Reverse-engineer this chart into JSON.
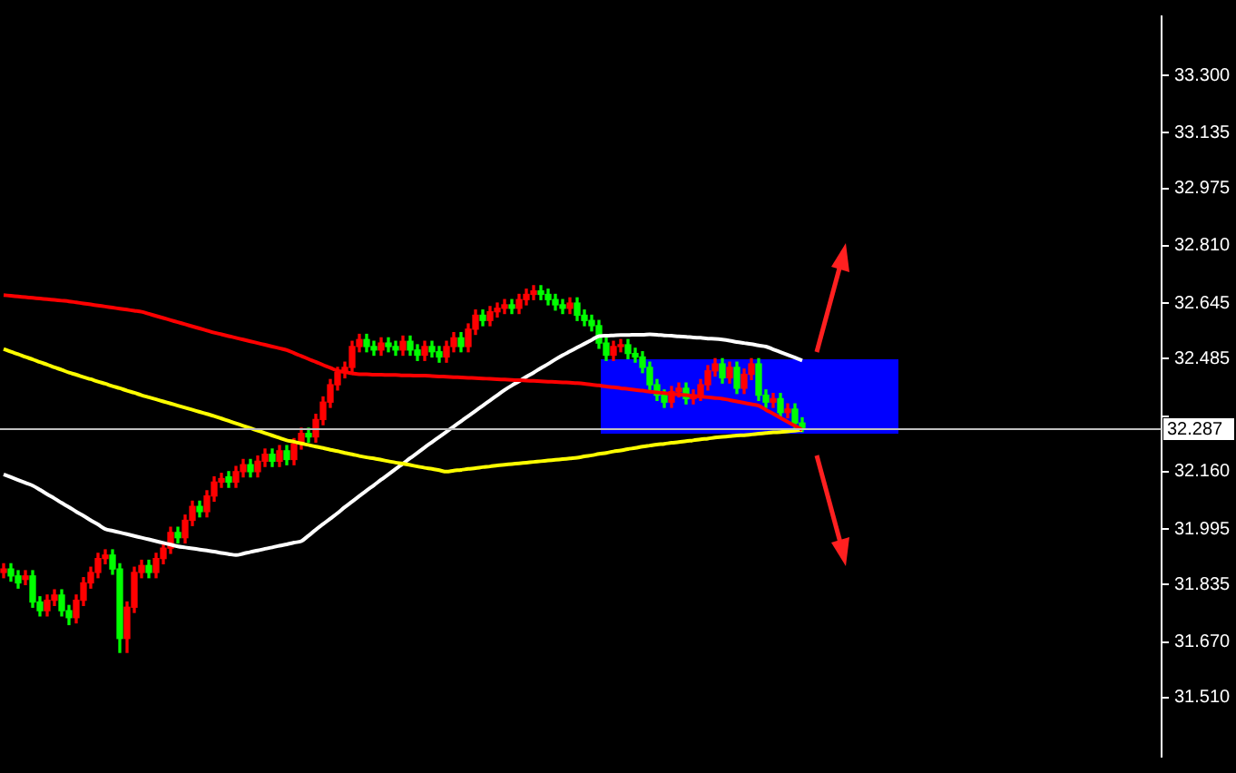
{
  "chart_data": {
    "type": "candlestick",
    "ylim": [
      31.34,
      33.47
    ],
    "tick_labels": "y",
    "marker": "none",
    "yticks": [
      {
        "value": 31.51,
        "label": "31.510"
      },
      {
        "value": 31.67,
        "label": "31.670"
      },
      {
        "value": 31.835,
        "label": "31.835"
      },
      {
        "value": 31.995,
        "label": "31.995"
      },
      {
        "value": 32.16,
        "label": "32.160"
      },
      {
        "value": 32.32,
        "label": null
      },
      {
        "value": 32.485,
        "label": "32.485"
      },
      {
        "value": 32.645,
        "label": "32.645"
      },
      {
        "value": 32.81,
        "label": "32.810"
      },
      {
        "value": 32.975,
        "label": "32.975"
      },
      {
        "value": 33.135,
        "label": "33.135"
      },
      {
        "value": 33.3,
        "label": "33.300"
      }
    ],
    "categories": [
      null,
      null,
      null,
      null,
      null,
      null,
      null,
      null,
      null,
      null,
      null,
      null,
      null,
      null,
      null,
      null,
      null,
      null,
      null,
      null,
      null,
      null,
      null,
      null,
      null,
      null,
      null,
      null,
      null,
      null,
      null,
      null,
      null,
      null,
      null,
      null,
      null,
      null,
      null,
      null,
      null,
      null,
      null,
      null,
      null,
      null,
      null,
      null,
      null,
      null,
      null,
      null,
      null,
      null,
      null,
      null,
      null,
      null,
      null,
      null,
      null,
      null,
      null,
      null,
      null,
      null,
      null,
      null,
      null,
      null,
      null,
      null,
      null,
      null,
      null,
      null,
      null,
      null,
      null,
      null,
      null,
      null,
      null,
      null,
      null,
      null,
      null,
      null,
      null,
      null,
      null,
      null,
      null,
      null,
      null,
      null,
      null,
      null,
      null,
      null,
      null,
      null,
      null,
      null,
      null,
      null,
      null,
      null,
      null,
      null,
      null,
      null,
      null,
      null,
      null,
      null,
      null,
      null,
      null,
      null,
      null,
      null,
      null,
      null,
      null,
      null,
      null,
      null,
      null,
      null,
      null,
      null,
      null,
      null,
      null,
      null,
      null,
      null,
      null,
      null,
      null,
      null,
      null,
      null,
      null,
      null,
      null,
      null,
      null,
      null,
      null,
      null,
      null,
      null,
      null,
      null,
      null,
      null,
      null,
      null
    ],
    "ohlc": [
      [
        31.87,
        31.895,
        31.855,
        31.88
      ],
      [
        31.88,
        31.895,
        31.845,
        31.86
      ],
      [
        31.86,
        31.875,
        31.825,
        31.84
      ],
      [
        31.85,
        31.875,
        31.835,
        31.86
      ],
      [
        31.86,
        31.875,
        31.77,
        31.785
      ],
      [
        31.785,
        31.8,
        31.745,
        31.76
      ],
      [
        31.76,
        31.805,
        31.745,
        31.79
      ],
      [
        31.79,
        31.82,
        31.775,
        31.805
      ],
      [
        31.805,
        31.82,
        31.745,
        31.76
      ],
      [
        31.76,
        31.775,
        31.72,
        31.74
      ],
      [
        31.74,
        31.805,
        31.725,
        31.79
      ],
      [
        31.79,
        31.855,
        31.775,
        31.84
      ],
      [
        31.84,
        31.885,
        31.825,
        31.87
      ],
      [
        31.87,
        31.925,
        31.855,
        31.91
      ],
      [
        31.91,
        31.935,
        31.895,
        31.92
      ],
      [
        31.92,
        31.935,
        31.865,
        31.88
      ],
      [
        31.88,
        31.895,
        31.64,
        31.68
      ],
      [
        31.68,
        31.785,
        31.64,
        31.77
      ],
      [
        31.77,
        31.885,
        31.755,
        31.87
      ],
      [
        31.87,
        31.905,
        31.855,
        31.89
      ],
      [
        31.89,
        31.905,
        31.855,
        31.87
      ],
      [
        31.87,
        31.925,
        31.855,
        31.91
      ],
      [
        31.91,
        31.955,
        31.895,
        31.94
      ],
      [
        31.94,
        32.0,
        31.925,
        31.985
      ],
      [
        31.985,
        32.0,
        31.955,
        31.97
      ],
      [
        31.97,
        32.035,
        31.955,
        32.02
      ],
      [
        32.02,
        32.075,
        32.005,
        32.06
      ],
      [
        32.06,
        32.075,
        32.03,
        32.045
      ],
      [
        32.045,
        32.105,
        32.03,
        32.09
      ],
      [
        32.09,
        32.145,
        32.075,
        32.13
      ],
      [
        32.13,
        32.155,
        32.115,
        32.14
      ],
      [
        32.145,
        32.16,
        32.115,
        32.13
      ],
      [
        32.13,
        32.175,
        32.115,
        32.16
      ],
      [
        32.16,
        32.195,
        32.145,
        32.18
      ],
      [
        32.18,
        32.195,
        32.145,
        32.16
      ],
      [
        32.16,
        32.205,
        32.145,
        32.19
      ],
      [
        32.19,
        32.225,
        32.175,
        32.21
      ],
      [
        32.21,
        32.225,
        32.175,
        32.19
      ],
      [
        32.19,
        32.235,
        32.175,
        32.22
      ],
      [
        32.22,
        32.235,
        32.18,
        32.195
      ],
      [
        32.195,
        32.255,
        32.18,
        32.24
      ],
      [
        32.24,
        32.285,
        32.225,
        32.27
      ],
      [
        32.27,
        32.285,
        32.245,
        32.26
      ],
      [
        32.26,
        32.325,
        32.245,
        32.31
      ],
      [
        32.31,
        32.375,
        32.295,
        32.36
      ],
      [
        32.36,
        32.425,
        32.345,
        32.41
      ],
      [
        32.41,
        32.46,
        32.395,
        32.445
      ],
      [
        32.445,
        32.475,
        32.43,
        32.46
      ],
      [
        32.46,
        32.535,
        32.445,
        32.52
      ],
      [
        32.52,
        32.555,
        32.505,
        32.54
      ],
      [
        32.54,
        32.555,
        32.505,
        32.52
      ],
      [
        32.52,
        32.535,
        32.495,
        32.51
      ],
      [
        32.51,
        32.545,
        32.495,
        32.53
      ],
      [
        32.53,
        32.545,
        32.505,
        32.52
      ],
      [
        32.52,
        32.535,
        32.495,
        32.51
      ],
      [
        32.51,
        32.55,
        32.495,
        32.535
      ],
      [
        32.535,
        32.55,
        32.495,
        32.51
      ],
      [
        32.51,
        32.525,
        32.48,
        32.495
      ],
      [
        32.495,
        32.535,
        32.48,
        32.52
      ],
      [
        32.52,
        32.535,
        32.49,
        32.505
      ],
      [
        32.505,
        32.52,
        32.475,
        32.49
      ],
      [
        32.49,
        32.535,
        32.475,
        32.52
      ],
      [
        32.52,
        32.56,
        32.505,
        32.545
      ],
      [
        32.545,
        32.56,
        32.505,
        32.52
      ],
      [
        32.52,
        32.585,
        32.505,
        32.57
      ],
      [
        32.57,
        32.625,
        32.555,
        32.61
      ],
      [
        32.61,
        32.625,
        32.58,
        32.595
      ],
      [
        32.595,
        32.635,
        32.58,
        32.62
      ],
      [
        32.62,
        32.645,
        32.605,
        32.63
      ],
      [
        32.63,
        32.655,
        32.615,
        32.64
      ],
      [
        32.64,
        32.655,
        32.615,
        32.63
      ],
      [
        32.63,
        32.67,
        32.615,
        32.655
      ],
      [
        32.655,
        32.685,
        32.64,
        32.67
      ],
      [
        32.67,
        32.695,
        32.655,
        32.68
      ],
      [
        32.68,
        32.695,
        32.655,
        32.67
      ],
      [
        32.67,
        32.685,
        32.64,
        32.655
      ],
      [
        32.655,
        32.67,
        32.625,
        32.64
      ],
      [
        32.64,
        32.655,
        32.615,
        32.63
      ],
      [
        32.63,
        32.66,
        32.615,
        32.645
      ],
      [
        32.645,
        32.66,
        32.595,
        32.61
      ],
      [
        32.61,
        32.625,
        32.58,
        32.595
      ],
      [
        32.595,
        32.61,
        32.565,
        32.58
      ],
      [
        32.58,
        32.595,
        32.515,
        32.53
      ],
      [
        32.53,
        32.545,
        32.48,
        32.495
      ],
      [
        32.495,
        32.535,
        32.48,
        32.52
      ],
      [
        32.52,
        32.54,
        32.505,
        32.525
      ],
      [
        32.525,
        32.54,
        32.485,
        32.5
      ],
      [
        32.5,
        32.515,
        32.475,
        32.49
      ],
      [
        32.49,
        32.505,
        32.445,
        32.46
      ],
      [
        32.46,
        32.475,
        32.395,
        32.41
      ],
      [
        32.41,
        32.425,
        32.365,
        32.38
      ],
      [
        32.38,
        32.395,
        32.345,
        32.36
      ],
      [
        32.36,
        32.405,
        32.345,
        32.39
      ],
      [
        32.39,
        32.415,
        32.375,
        32.4
      ],
      [
        32.4,
        32.415,
        32.355,
        32.37
      ],
      [
        32.37,
        32.395,
        32.355,
        32.38
      ],
      [
        32.38,
        32.425,
        32.365,
        32.41
      ],
      [
        32.41,
        32.465,
        32.395,
        32.45
      ],
      [
        32.45,
        32.485,
        32.435,
        32.47
      ],
      [
        32.47,
        32.485,
        32.415,
        32.43
      ],
      [
        32.43,
        32.475,
        32.415,
        32.46
      ],
      [
        32.46,
        32.475,
        32.385,
        32.4
      ],
      [
        32.4,
        32.455,
        32.385,
        32.44
      ],
      [
        32.44,
        32.485,
        32.425,
        32.47
      ],
      [
        32.47,
        32.485,
        32.365,
        32.38
      ],
      [
        32.38,
        32.395,
        32.345,
        32.36
      ],
      [
        32.36,
        32.385,
        32.345,
        32.37
      ],
      [
        32.37,
        32.385,
        32.315,
        32.33
      ],
      [
        32.33,
        32.355,
        32.315,
        32.34
      ],
      [
        32.34,
        32.355,
        32.285,
        32.3
      ],
      [
        32.3,
        32.315,
        32.275,
        32.287
      ],
      null,
      null,
      null,
      null,
      null,
      null,
      null,
      null,
      null,
      null,
      null,
      null,
      null,
      null,
      null,
      null,
      null,
      null,
      null,
      null,
      null,
      null,
      null,
      null,
      null,
      null,
      null,
      null,
      null,
      null,
      null,
      null,
      null,
      null,
      null,
      null,
      null,
      null,
      null,
      null,
      null,
      null,
      null,
      null,
      null,
      null,
      null,
      null,
      null
    ],
    "colors": [
      "#ff0000",
      "#00ff00",
      "#00ff00",
      "#ff0000",
      "#00ff00",
      "#00ff00",
      "#ff0000",
      "#ff0000",
      "#00ff00",
      "#00ff00",
      "#ff0000",
      "#ff0000",
      "#ff0000",
      "#ff0000",
      "#ff0000",
      "#00ff00",
      "#00ff00",
      "#ff0000",
      "#ff0000",
      "#ff0000",
      "#00ff00",
      "#ff0000",
      "#ff0000",
      "#ff0000",
      "#00ff00",
      "#ff0000",
      "#ff0000",
      "#00ff00",
      "#ff0000",
      "#ff0000",
      "#ff0000",
      "#00ff00",
      "#ff0000",
      "#ff0000",
      "#00ff00",
      "#ff0000",
      "#ff0000",
      "#00ff00",
      "#ff0000",
      "#00ff00",
      "#ff0000",
      "#ff0000",
      "#00ff00",
      "#ff0000",
      "#ff0000",
      "#ff0000",
      "#ff0000",
      "#ff0000",
      "#ff0000",
      "#ff0000",
      "#00ff00",
      "#00ff00",
      "#ff0000",
      "#00ff00",
      "#00ff00",
      "#ff0000",
      "#00ff00",
      "#00ff00",
      "#ff0000",
      "#00ff00",
      "#00ff00",
      "#ff0000",
      "#ff0000",
      "#00ff00",
      "#ff0000",
      "#ff0000",
      "#00ff00",
      "#ff0000",
      "#ff0000",
      "#ff0000",
      "#00ff00",
      "#ff0000",
      "#ff0000",
      "#ff0000",
      "#00ff00",
      "#00ff00",
      "#00ff00",
      "#00ff00",
      "#ff0000",
      "#00ff00",
      "#00ff00",
      "#00ff00",
      "#00ff00",
      "#00ff00",
      "#ff0000",
      "#ff0000",
      "#00ff00",
      "#00ff00",
      "#00ff00",
      "#00ff00",
      "#00ff00",
      "#00ff00",
      "#ff0000",
      "#ff0000",
      "#00ff00",
      "#ff0000",
      "#ff0000",
      "#ff0000",
      "#ff0000",
      "#00ff00",
      "#ff0000",
      "#00ff00",
      "#ff0000",
      "#ff0000",
      "#00ff00",
      "#00ff00",
      "#ff0000",
      "#00ff00",
      "#ff0000",
      "#00ff00",
      "#00ff00",
      null,
      null,
      null,
      null,
      null,
      null,
      null,
      null,
      null,
      null,
      null,
      null,
      null,
      null,
      null,
      null,
      null,
      null,
      null,
      null,
      null,
      null,
      null,
      null,
      null,
      null,
      null,
      null,
      null,
      null,
      null,
      null,
      null,
      null,
      null,
      null,
      null,
      null,
      null,
      null,
      null,
      null,
      null,
      null,
      null,
      null,
      null,
      null,
      null
    ],
    "series": [
      {
        "type": "line",
        "color": "#ff0000",
        "values": [
          32.668,
          32.666,
          32.664,
          32.662,
          32.66,
          32.658,
          32.656,
          32.654,
          32.652,
          32.65,
          32.647,
          32.644,
          32.641,
          32.638,
          32.635,
          32.632,
          32.629,
          32.626,
          32.623,
          32.62,
          32.614,
          32.608,
          32.602,
          32.596,
          32.59,
          32.584,
          32.578,
          32.572,
          32.566,
          32.56,
          32.555,
          32.55,
          32.545,
          32.54,
          32.535,
          32.53,
          32.525,
          32.52,
          32.515,
          32.51,
          32.501,
          32.493,
          32.484,
          32.476,
          32.467,
          32.459,
          32.45,
          32.447,
          32.443,
          32.44,
          32.44,
          32.439,
          32.439,
          32.438,
          32.438,
          32.437,
          32.437,
          32.436,
          32.436,
          32.435,
          32.434,
          32.433,
          32.432,
          32.431,
          32.43,
          32.429,
          32.428,
          32.427,
          32.426,
          32.425,
          32.424,
          32.423,
          32.422,
          32.421,
          32.42,
          32.419,
          32.418,
          32.417,
          32.416,
          32.415,
          32.413,
          32.41,
          32.408,
          32.405,
          32.403,
          32.4,
          32.398,
          32.395,
          32.393,
          32.39,
          32.388,
          32.386,
          32.384,
          32.382,
          32.38,
          32.378,
          32.376,
          32.374,
          32.372,
          32.37,
          32.366,
          32.362,
          32.358,
          32.354,
          32.35,
          32.338,
          32.327,
          32.315,
          32.303,
          32.292,
          32.28,
          null,
          null,
          null,
          null,
          null,
          null,
          null,
          null,
          null,
          null,
          null,
          null,
          null,
          null,
          null,
          null,
          null,
          null,
          null,
          null,
          null,
          null,
          null,
          null,
          null,
          null,
          null,
          null,
          null,
          null,
          null,
          null,
          null,
          null,
          null,
          null,
          null,
          null,
          null,
          null,
          null,
          null,
          null,
          null,
          null,
          null,
          null,
          null,
          null
        ]
      },
      {
        "type": "line",
        "color": "#ffff00",
        "values": [
          32.513,
          32.505,
          32.498,
          32.49,
          32.483,
          32.475,
          32.468,
          32.46,
          32.453,
          32.445,
          32.439,
          32.432,
          32.426,
          32.419,
          32.413,
          32.406,
          32.4,
          32.393,
          32.387,
          32.38,
          32.374,
          32.368,
          32.362,
          32.356,
          32.35,
          32.344,
          32.338,
          32.332,
          32.326,
          32.32,
          32.313,
          32.306,
          32.299,
          32.292,
          32.285,
          32.278,
          32.271,
          32.264,
          32.257,
          32.25,
          32.246,
          32.241,
          32.237,
          32.232,
          32.228,
          32.223,
          32.219,
          32.214,
          32.21,
          32.205,
          32.201,
          32.198,
          32.194,
          32.19,
          32.186,
          32.183,
          32.179,
          32.175,
          32.171,
          32.168,
          32.164,
          32.16,
          32.163,
          32.165,
          32.168,
          32.17,
          32.173,
          32.175,
          32.178,
          32.18,
          32.182,
          32.184,
          32.186,
          32.188,
          32.19,
          32.192,
          32.194,
          32.196,
          32.198,
          32.2,
          32.204,
          32.207,
          32.211,
          32.214,
          32.218,
          32.221,
          32.225,
          32.228,
          32.232,
          32.235,
          32.238,
          32.24,
          32.243,
          32.245,
          32.248,
          32.25,
          32.253,
          32.255,
          32.258,
          32.26,
          32.262,
          32.264,
          32.265,
          32.267,
          32.269,
          32.271,
          32.273,
          32.274,
          32.276,
          32.278,
          32.28,
          null,
          null,
          null,
          null,
          null,
          null,
          null,
          null,
          null,
          null,
          null,
          null,
          null,
          null,
          null,
          null,
          null,
          null,
          null,
          null,
          null,
          null,
          null,
          null,
          null,
          null,
          null,
          null,
          null,
          null,
          null,
          null,
          null,
          null,
          null,
          null,
          null,
          null,
          null,
          null,
          null,
          null,
          null,
          null,
          null,
          null,
          null,
          null,
          null
        ]
      },
      {
        "type": "line",
        "color": "#ffffff",
        "values": [
          32.152,
          32.144,
          32.136,
          32.128,
          32.12,
          32.108,
          32.095,
          32.083,
          32.07,
          32.058,
          32.045,
          32.033,
          32.02,
          32.008,
          31.995,
          31.99,
          31.985,
          31.98,
          31.975,
          31.97,
          31.965,
          31.96,
          31.955,
          31.95,
          31.945,
          31.942,
          31.939,
          31.936,
          31.933,
          31.93,
          31.926,
          31.923,
          31.92,
          31.924,
          31.929,
          31.933,
          31.938,
          31.942,
          31.947,
          31.951,
          31.956,
          31.96,
          31.976,
          31.993,
          32.009,
          32.025,
          32.041,
          32.058,
          32.074,
          32.09,
          32.106,
          32.121,
          32.137,
          32.152,
          32.168,
          32.183,
          32.199,
          32.214,
          32.23,
          32.245,
          32.26,
          32.275,
          32.29,
          32.305,
          32.32,
          32.335,
          32.35,
          32.365,
          32.38,
          32.395,
          32.408,
          32.42,
          32.433,
          32.445,
          32.458,
          32.47,
          32.483,
          32.495,
          32.506,
          32.517,
          32.528,
          32.539,
          32.55,
          32.551,
          32.552,
          32.553,
          32.553,
          32.554,
          32.554,
          32.555,
          32.554,
          32.552,
          32.551,
          32.549,
          32.548,
          32.546,
          32.545,
          32.543,
          32.542,
          32.54,
          32.537,
          32.533,
          32.53,
          32.527,
          32.523,
          32.52,
          32.512,
          32.504,
          32.496,
          32.488,
          32.48,
          null,
          null,
          null,
          null,
          null,
          null,
          null,
          null,
          null,
          null,
          null,
          null,
          null,
          null,
          null,
          null,
          null,
          null,
          null,
          null,
          null,
          null,
          null,
          null,
          null,
          null,
          null,
          null,
          null,
          null,
          null,
          null,
          null,
          null,
          null,
          null,
          null,
          null,
          null,
          null,
          null,
          null,
          null,
          null,
          null,
          null,
          null,
          null,
          null
        ]
      }
    ],
    "ref_lines": [
      {
        "axis": "y",
        "value": 32.287,
        "label": "32.287",
        "color": "#c0c0c0"
      }
    ]
  }
}
